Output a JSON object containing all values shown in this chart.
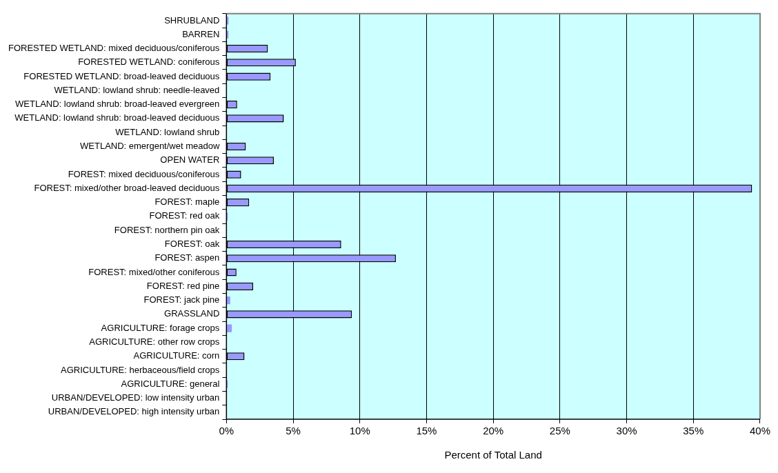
{
  "chart_data": {
    "type": "bar",
    "orientation": "horizontal",
    "xlabel": "Percent of Total Land",
    "categories": [
      "SHRUBLAND",
      "BARREN",
      "FORESTED WETLAND: mixed deciduous/coniferous",
      "FORESTED WETLAND: coniferous",
      "FORESTED WETLAND: broad-leaved deciduous",
      "WETLAND: lowland shrub: needle-leaved",
      "WETLAND: lowland shrub: broad-leaved evergreen",
      "WETLAND: lowland shrub: broad-leaved deciduous",
      "WETLAND: lowland shrub",
      "WETLAND: emergent/wet meadow",
      "OPEN WATER",
      "FOREST: mixed deciduous/coniferous",
      "FOREST: mixed/other broad-leaved deciduous",
      "FOREST: maple",
      "FOREST: red oak",
      "FOREST: northern pin oak",
      "FOREST: oak",
      "FOREST: aspen",
      "FOREST: mixed/other coniferous",
      "FOREST: red pine",
      "FOREST: jack pine",
      "GRASSLAND",
      "AGRICULTURE: forage crops",
      "AGRICULTURE: other row crops",
      "AGRICULTURE: corn",
      "AGRICULTURE: herbaceous/field crops",
      "AGRICULTURE: general",
      "URBAN/DEVELOPED: low intensity urban",
      "URBAN/DEVELOPED: high intensity urban"
    ],
    "values": [
      0.15,
      0.15,
      3.1,
      5.2,
      3.3,
      0,
      0.8,
      4.3,
      0,
      1.45,
      3.55,
      1.1,
      39.4,
      1.7,
      0.1,
      0,
      8.6,
      12.7,
      0.75,
      2.0,
      0.28,
      9.4,
      0.4,
      0,
      1.35,
      0,
      0.1,
      0,
      0
    ],
    "color": "#9999ff",
    "xlim": [
      0,
      40
    ],
    "xticks": [
      {
        "value": 0,
        "label": "0%"
      },
      {
        "value": 5,
        "label": "5%"
      },
      {
        "value": 10,
        "label": "10%"
      },
      {
        "value": 15,
        "label": "15%"
      },
      {
        "value": 20,
        "label": "20%"
      },
      {
        "value": 25,
        "label": "25%"
      },
      {
        "value": 30,
        "label": "30%"
      },
      {
        "value": 35,
        "label": "35%"
      },
      {
        "value": 40,
        "label": "40%"
      }
    ],
    "grid": "x",
    "legend": false
  }
}
